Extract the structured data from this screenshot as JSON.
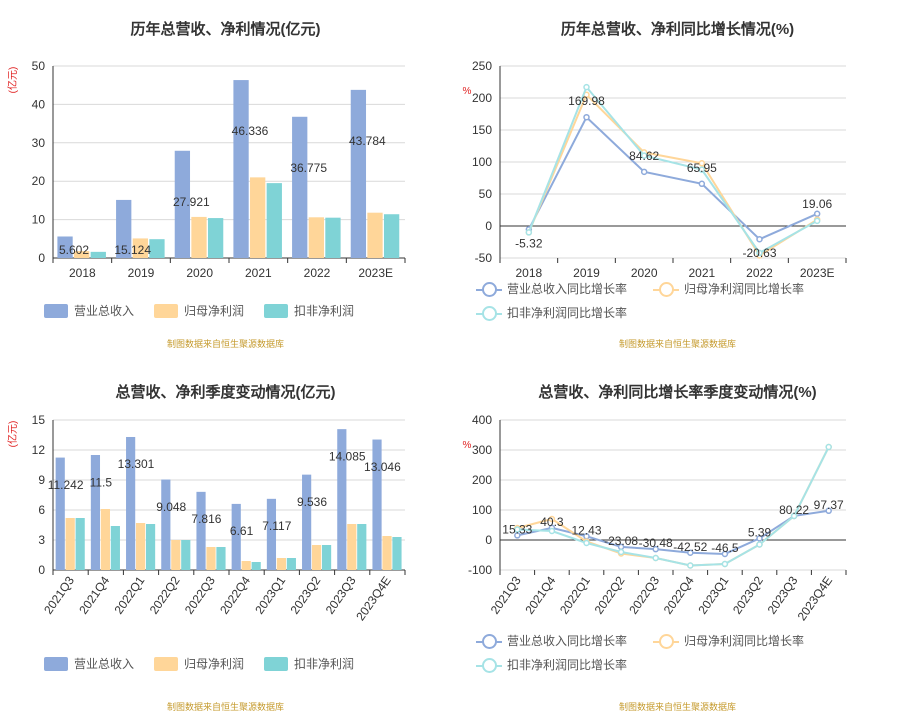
{
  "source_note": "制图数据来自恒生聚源数据库",
  "chart_data": [
    {
      "type": "bar",
      "title": "历年总营收、净利情况(亿元)",
      "ylabel": "(亿元)",
      "categories": [
        "2018",
        "2019",
        "2020",
        "2021",
        "2022",
        "2023E"
      ],
      "series": [
        {
          "name": "营业总收入",
          "values": [
            5.602,
            15.124,
            27.921,
            46.336,
            36.775,
            43.784
          ]
        },
        {
          "name": "归母净利润",
          "values": [
            1.8,
            5.1,
            10.7,
            21.0,
            10.6,
            11.8
          ]
        },
        {
          "name": "扣非净利润",
          "values": [
            1.6,
            4.9,
            10.4,
            19.5,
            10.5,
            11.4
          ]
        }
      ],
      "data_labels": [
        "5.602",
        "15.124",
        "27.921",
        "46.336",
        "36.775",
        "43.784"
      ],
      "ylim": [
        0,
        50
      ],
      "yticks": [
        0,
        10,
        20,
        30,
        40,
        50
      ],
      "colors": [
        "#8eaadb",
        "#ffd699",
        "#7fd3d6"
      ],
      "legend": "bottom",
      "grid": true
    },
    {
      "type": "line",
      "title": "历年总营收、净利同比增长情况(%)",
      "ylabel": "%",
      "categories": [
        "2018",
        "2019",
        "2020",
        "2021",
        "2022",
        "2023E"
      ],
      "series": [
        {
          "name": "营业总收入同比增长率",
          "values": [
            -5.32,
            169.98,
            84.62,
            65.95,
            -20.63,
            19.06
          ]
        },
        {
          "name": "归母净利润同比增长率",
          "values": [
            -10,
            205,
            115,
            98,
            -46,
            10
          ]
        },
        {
          "name": "扣非净利润同比增长率",
          "values": [
            -10,
            217,
            110,
            88,
            -42,
            8
          ]
        }
      ],
      "data_labels": [
        "-5.32",
        "169.98",
        "84.62",
        "65.95",
        "-20.63",
        "19.06"
      ],
      "ylim": [
        -50,
        250
      ],
      "yticks": [
        -50,
        0,
        50,
        100,
        150,
        200,
        250
      ],
      "colors": [
        "#8eaadb",
        "#ffd699",
        "#a6e3e6"
      ],
      "legend": "bottom",
      "grid": true
    },
    {
      "type": "bar",
      "title": "总营收、净利季度变动情况(亿元)",
      "ylabel": "(亿元)",
      "categories": [
        "2021Q3",
        "2021Q4",
        "2022Q1",
        "2022Q2",
        "2022Q3",
        "2022Q4",
        "2023Q1",
        "2023Q2",
        "2023Q3",
        "2023Q4E"
      ],
      "series": [
        {
          "name": "营业总收入",
          "values": [
            11.242,
            11.5,
            13.301,
            9.048,
            7.816,
            6.61,
            7.117,
            9.536,
            14.085,
            13.046
          ]
        },
        {
          "name": "归母净利润",
          "values": [
            5.2,
            6.1,
            4.7,
            3.0,
            2.3,
            0.9,
            1.2,
            2.5,
            4.6,
            3.4
          ]
        },
        {
          "name": "扣非净利润",
          "values": [
            5.2,
            4.4,
            4.6,
            3.0,
            2.3,
            0.8,
            1.2,
            2.5,
            4.6,
            3.3
          ]
        }
      ],
      "data_labels": [
        "11.242",
        "11.5",
        "13.301",
        "9.048",
        "7.816",
        "6.61",
        "7.117",
        "9.536",
        "14.085",
        "13.046"
      ],
      "ylim": [
        0,
        15
      ],
      "yticks": [
        0,
        3,
        6,
        9,
        12,
        15
      ],
      "colors": [
        "#8eaadb",
        "#ffd699",
        "#7fd3d6"
      ],
      "legend": "bottom",
      "grid": true
    },
    {
      "type": "line",
      "title": "总营收、净利同比增长率季度变动情况(%)",
      "ylabel": "%",
      "categories": [
        "2021Q3",
        "2021Q4",
        "2022Q1",
        "2022Q2",
        "2022Q3",
        "2022Q4",
        "2023Q1",
        "2023Q2",
        "2023Q3",
        "2023Q4E"
      ],
      "series": [
        {
          "name": "营业总收入同比增长率",
          "values": [
            15.33,
            40.3,
            12.43,
            -23.08,
            -30.48,
            -42.52,
            -46.5,
            5.39,
            80.22,
            97.37
          ]
        },
        {
          "name": "归母净利润同比增长率",
          "values": [
            40,
            70,
            -5,
            -45,
            -60,
            -85,
            -80,
            -15,
            80,
            310
          ]
        },
        {
          "name": "扣非净利润同比增长率",
          "values": [
            35,
            30,
            -10,
            -40,
            -60,
            -85,
            -80,
            -15,
            80,
            310
          ]
        }
      ],
      "data_labels": [
        "15.33",
        "40.3",
        "12.43",
        "-23.08",
        "-30.48",
        "-42.52",
        "-46.5",
        "5.39",
        "80.22",
        "97.37"
      ],
      "ylim": [
        -100,
        400
      ],
      "yticks": [
        -100,
        0,
        100,
        200,
        300,
        400
      ],
      "colors": [
        "#8eaadb",
        "#ffd699",
        "#a6e3e6"
      ],
      "legend": "bottom",
      "grid": true
    }
  ]
}
